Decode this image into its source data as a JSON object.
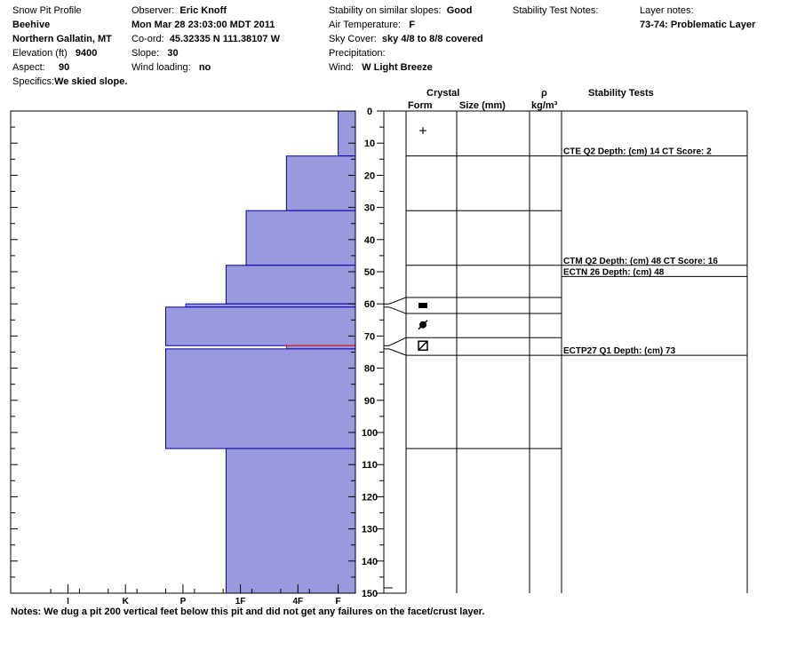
{
  "header": {
    "title": "Snow Pit Profile",
    "location": "Beehive",
    "region": "Northern Gallatin, MT",
    "elevation_label": "Elevation (ft)",
    "elevation": "9400",
    "aspect_label": "Aspect:",
    "aspect": "90",
    "specifics_label": "Specifics:",
    "specifics": "We skied slope.",
    "observer_label": "Observer:",
    "observer": "Eric Knoff",
    "datetime": "Mon Mar 28 23:03:00 MDT 2011",
    "coord_label": "Co-ord:",
    "coord": "45.32335 N 111.38107 W",
    "slope_label": "Slope:",
    "slope": "30",
    "wind_loading_label": "Wind loading:",
    "wind_loading": "no",
    "stability_label": "Stability on similar slopes:",
    "stability": "Good",
    "air_temp_label": "Air Temperature:",
    "air_temp": "F",
    "sky_label": "Sky Cover:",
    "sky": "sky 4/8 to 8/8 covered",
    "precip_label": "Precipitation:",
    "wind_label": "Wind:",
    "wind": "W Light Breeze",
    "stability_notes_label": "Stability Test Notes:",
    "layer_notes_label": "Layer notes:",
    "layer_notes": "73-74: Problematic Layer"
  },
  "columns": {
    "crystal": "Crystal",
    "form": "Form",
    "size": "Size (mm)",
    "rho": "ρ",
    "density_unit": "kg/m³",
    "stability_tests": "Stability Tests"
  },
  "notes": "Notes:  We dug a pit 200 vertical feet below this pit and did not get any failures on the facet/crust layer.",
  "chart_data": {
    "type": "bar",
    "orientation": "horizontal",
    "y_axis": {
      "range": [
        0,
        150
      ],
      "ticks": [
        0,
        10,
        20,
        30,
        40,
        50,
        60,
        70,
        80,
        90,
        100,
        110,
        120,
        130,
        140,
        150
      ],
      "minor_step": 5,
      "unit": "cm"
    },
    "hardness_axis": {
      "labels": [
        "I",
        "K",
        "P",
        "1F",
        "4F",
        "F"
      ],
      "values": [
        5,
        4,
        3,
        2,
        1,
        0.3
      ]
    },
    "layers": [
      {
        "top": 0,
        "bottom": 14,
        "hardness": 0.3
      },
      {
        "top": 14,
        "bottom": 31,
        "hardness": 1.2
      },
      {
        "top": 31,
        "bottom": 48,
        "hardness": 1.9
      },
      {
        "top": 48,
        "bottom": 60,
        "hardness": 2.25
      },
      {
        "top": 60,
        "bottom": 61,
        "hardness": 2.95
      },
      {
        "top": 61,
        "bottom": 73,
        "hardness": 3.3
      },
      {
        "top": 73,
        "bottom": 74,
        "hardness": 1.2,
        "color": "#ff0000"
      },
      {
        "top": 74,
        "bottom": 105,
        "hardness": 3.3
      },
      {
        "top": 105,
        "bottom": 150,
        "hardness": 2.25
      }
    ],
    "layer_boundaries": [
      14,
      31,
      48,
      58,
      63,
      70.5,
      76,
      105
    ],
    "crystal_symbols": [
      {
        "symbol": "+",
        "at": 6
      },
      {
        "symbol": "rect",
        "at": 60.5
      },
      {
        "symbol": "circle-slash",
        "at": 66.5
      },
      {
        "symbol": "box-slash",
        "at": 73
      }
    ],
    "stability_tests": [
      {
        "text": "CTE Q2 Depth: (cm) 14 CT Score: 2",
        "depth": 14
      },
      {
        "text": "CTM Q2 Depth: (cm) 48 CT Score: 16",
        "depth": 48
      },
      {
        "text": "ECTN 26  Depth: (cm) 48",
        "depth": 51.5
      },
      {
        "text": "ECTP27 Q1 Depth: (cm) 73",
        "depth": 76
      }
    ],
    "bar_color": "#9999dd",
    "edge_color": "#0000aa"
  }
}
